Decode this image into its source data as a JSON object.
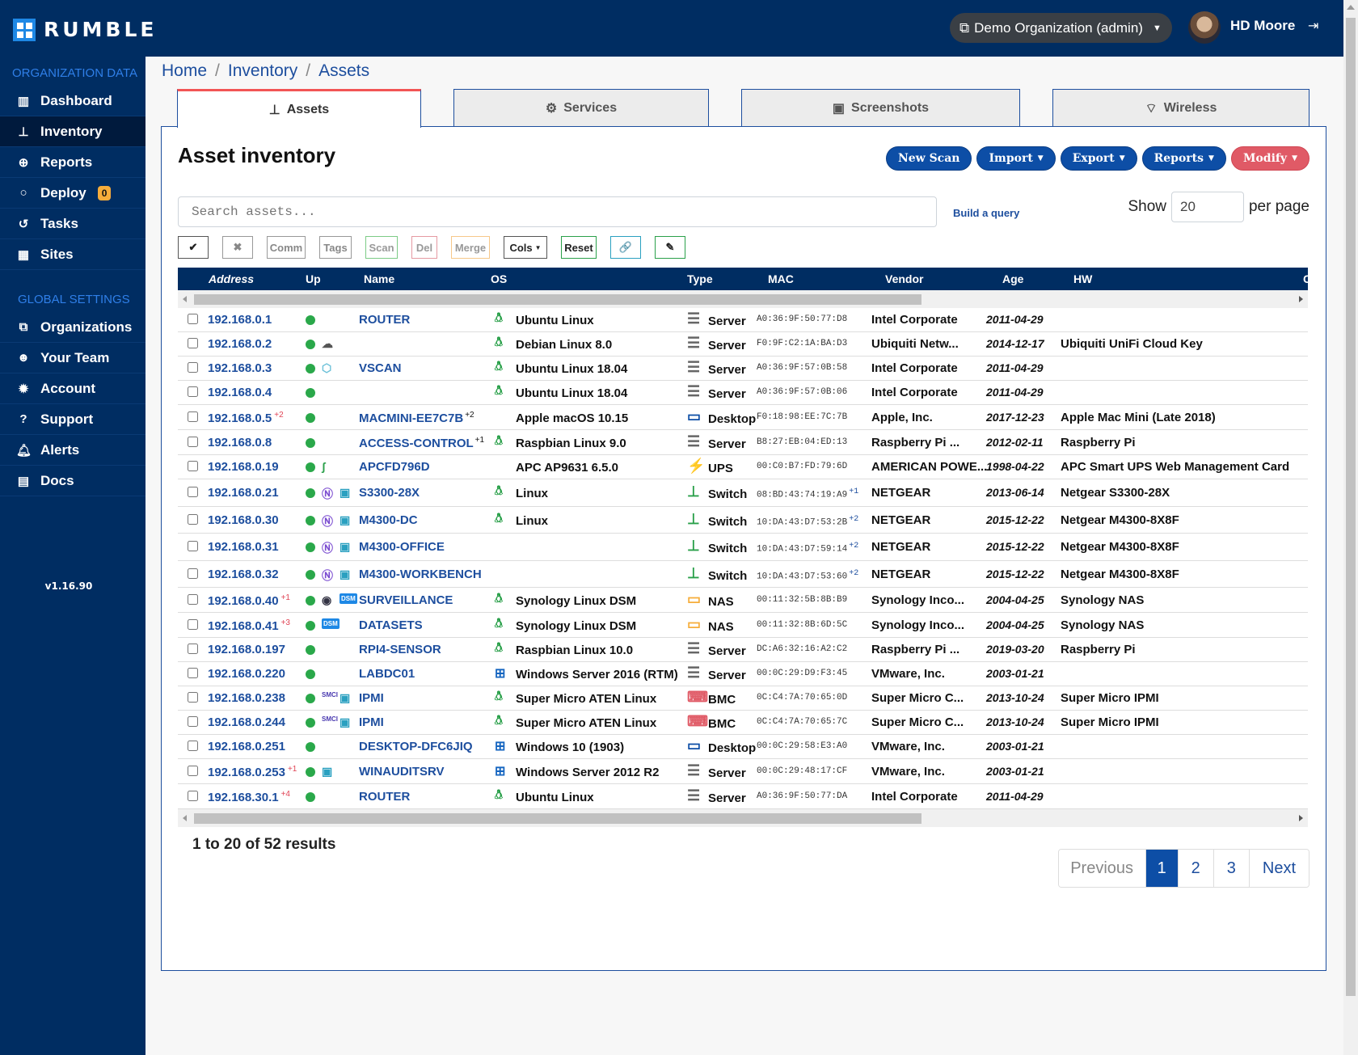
{
  "app": {
    "logo_text": "RUMBLE",
    "version": "v1.16.90"
  },
  "header": {
    "org_selector": "Demo Organization (admin)",
    "user_name": "HD Moore"
  },
  "sidebar": {
    "org_section": "ORGANIZATION DATA",
    "org_items": [
      {
        "label": "Dashboard",
        "icon": "bar-chart-icon"
      },
      {
        "label": "Inventory",
        "icon": "sitemap-icon",
        "active": true
      },
      {
        "label": "Reports",
        "icon": "search-plus-icon"
      },
      {
        "label": "Deploy",
        "icon": "circle-icon",
        "badge": "0"
      },
      {
        "label": "Tasks",
        "icon": "history-icon"
      },
      {
        "label": "Sites",
        "icon": "building-icon"
      }
    ],
    "global_section": "GLOBAL SETTINGS",
    "global_items": [
      {
        "label": "Organizations",
        "icon": "object-group-icon"
      },
      {
        "label": "Your Team",
        "icon": "users-icon"
      },
      {
        "label": "Account",
        "icon": "certificate-icon"
      },
      {
        "label": "Support",
        "icon": "question-circle-icon"
      },
      {
        "label": "Alerts",
        "icon": "bell-icon"
      },
      {
        "label": "Docs",
        "icon": "book-icon"
      }
    ]
  },
  "breadcrumb": [
    "Home",
    "Inventory",
    "Assets"
  ],
  "tabs": [
    {
      "label": "Assets",
      "active": true
    },
    {
      "label": "Services"
    },
    {
      "label": "Screenshots"
    },
    {
      "label": "Wireless"
    }
  ],
  "page": {
    "title": "Asset inventory",
    "actions": {
      "new_scan": "New Scan",
      "import": "Import",
      "export": "Export",
      "reports": "Reports",
      "modify": "Modify"
    },
    "search_placeholder": "Search assets...",
    "build_query": "Build a query",
    "show_label": "Show",
    "per_page_value": "20",
    "per_page_label": "per page",
    "toolbar": {
      "check": "✔",
      "clear": "✖",
      "comm": "Comm",
      "tags": "Tags",
      "scan": "Scan",
      "del": "Del",
      "merge": "Merge",
      "cols": "Cols",
      "reset": "Reset",
      "link": "🔗",
      "edit": "✎"
    }
  },
  "table": {
    "columns": {
      "address": "Address",
      "up": "Up",
      "name": "Name",
      "os": "OS",
      "type": "Type",
      "mac": "MAC",
      "vendor": "Vendor",
      "age": "Age",
      "hw": "HW",
      "more": "C"
    },
    "rows": [
      {
        "address": "192.168.0.1",
        "addr_extra": "",
        "icons": [],
        "name": "ROUTER",
        "name_extra": "",
        "os_icon": "linux",
        "os": "Ubuntu Linux",
        "type_icon": "server",
        "type": "Server",
        "mac": "A0:36:9F:50:77:D8",
        "mac_extra": "",
        "vendor": "Intel Corporate",
        "age": "2011-04-29",
        "hw": ""
      },
      {
        "address": "192.168.0.2",
        "addr_extra": "",
        "icons": [
          "cloud"
        ],
        "name": "",
        "name_extra": "",
        "os_icon": "linux",
        "os": "Debian Linux 8.0",
        "type_icon": "server",
        "type": "Server",
        "mac": "F0:9F:C2:1A:BA:D3",
        "mac_extra": "",
        "vendor": "Ubiquiti Netw...",
        "age": "2014-12-17",
        "hw": "Ubiquiti UniFi Cloud Key"
      },
      {
        "address": "192.168.0.3",
        "addr_extra": "",
        "icons": [
          "hexagon"
        ],
        "name": "VSCAN",
        "name_extra": "",
        "os_icon": "linux",
        "os": "Ubuntu Linux 18.04",
        "type_icon": "server",
        "type": "Server",
        "mac": "A0:36:9F:57:0B:58",
        "mac_extra": "",
        "vendor": "Intel Corporate",
        "age": "2011-04-29",
        "hw": ""
      },
      {
        "address": "192.168.0.4",
        "addr_extra": "",
        "icons": [],
        "name": "",
        "name_extra": "",
        "os_icon": "linux",
        "os": "Ubuntu Linux 18.04",
        "type_icon": "server",
        "type": "Server",
        "mac": "A0:36:9F:57:0B:06",
        "mac_extra": "",
        "vendor": "Intel Corporate",
        "age": "2011-04-29",
        "hw": ""
      },
      {
        "address": "192.168.0.5",
        "addr_extra": "+2",
        "icons": [],
        "name": "MACMINI-EE7C7B",
        "name_extra": "+2",
        "os_icon": "apple",
        "os": "Apple macOS 10.15",
        "type_icon": "desktop",
        "type": "Desktop",
        "mac": "F0:18:98:EE:7C:7B",
        "mac_extra": "",
        "vendor": "Apple, Inc.",
        "age": "2017-12-23",
        "hw": "Apple Mac Mini (Late 2018)"
      },
      {
        "address": "192.168.0.8",
        "addr_extra": "",
        "icons": [],
        "name": "ACCESS-CONTROL",
        "name_extra": "+1",
        "os_icon": "linux",
        "os": "Raspbian Linux 9.0",
        "type_icon": "server",
        "type": "Server",
        "mac": "B8:27:EB:04:ED:13",
        "mac_extra": "",
        "vendor": "Raspberry Pi ...",
        "age": "2012-02-11",
        "hw": "Raspberry Pi"
      },
      {
        "address": "192.168.0.19",
        "addr_extra": "",
        "icons": [
          "schneider"
        ],
        "name": "APCFD796D",
        "name_extra": "",
        "os_icon": "",
        "os": "APC AP9631 6.5.0",
        "type_icon": "ups",
        "type": "UPS",
        "mac": "00:C0:B7:FD:79:6D",
        "mac_extra": "",
        "vendor": "AMERICAN POWE...",
        "age": "1998-04-22",
        "hw": "APC Smart UPS Web Management Card"
      },
      {
        "address": "192.168.0.21",
        "addr_extra": "",
        "icons": [
          "netgear",
          "image"
        ],
        "name": "S3300-28X",
        "name_extra": "",
        "os_icon": "linux",
        "os": "Linux",
        "type_icon": "switch",
        "type": "Switch",
        "mac": "08:BD:43:74:19:A9",
        "mac_extra": "+1",
        "vendor": "NETGEAR",
        "age": "2013-06-14",
        "hw": "Netgear S3300-28X"
      },
      {
        "address": "192.168.0.30",
        "addr_extra": "",
        "icons": [
          "netgear",
          "image"
        ],
        "name": "M4300-DC",
        "name_extra": "",
        "os_icon": "linux",
        "os": "Linux",
        "type_icon": "switch",
        "type": "Switch",
        "mac": "10:DA:43:D7:53:2B",
        "mac_extra": "+2",
        "vendor": "NETGEAR",
        "age": "2015-12-22",
        "hw": "Netgear M4300-8X8F"
      },
      {
        "address": "192.168.0.31",
        "addr_extra": "",
        "icons": [
          "netgear",
          "image"
        ],
        "name": "M4300-OFFICE",
        "name_extra": "",
        "os_icon": "",
        "os": "",
        "type_icon": "switch",
        "type": "Switch",
        "mac": "10:DA:43:D7:59:14",
        "mac_extra": "+2",
        "vendor": "NETGEAR",
        "age": "2015-12-22",
        "hw": "Netgear M4300-8X8F"
      },
      {
        "address": "192.168.0.32",
        "addr_extra": "",
        "icons": [
          "netgear",
          "image"
        ],
        "name": "M4300-WORKBENCH",
        "name_extra": "",
        "os_icon": "",
        "os": "",
        "type_icon": "switch",
        "type": "Switch",
        "mac": "10:DA:43:D7:53:60",
        "mac_extra": "+2",
        "vendor": "NETGEAR",
        "age": "2015-12-22",
        "hw": "Netgear M4300-8X8F"
      },
      {
        "address": "192.168.0.40",
        "addr_extra": "+1",
        "icons": [
          "camera",
          "dsm"
        ],
        "name": "SURVEILLANCE",
        "name_extra": "",
        "os_icon": "linux",
        "os": "Synology Linux DSM",
        "type_icon": "nas",
        "type": "NAS",
        "mac": "00:11:32:5B:8B:B9",
        "mac_extra": "",
        "vendor": "Synology Inco...",
        "age": "2004-04-25",
        "hw": "Synology NAS"
      },
      {
        "address": "192.168.0.41",
        "addr_extra": "+3",
        "icons": [
          "dsm"
        ],
        "name": "DATASETS",
        "name_extra": "",
        "os_icon": "linux",
        "os": "Synology Linux DSM",
        "type_icon": "nas",
        "type": "NAS",
        "mac": "00:11:32:8B:6D:5C",
        "mac_extra": "",
        "vendor": "Synology Inco...",
        "age": "2004-04-25",
        "hw": "Synology NAS"
      },
      {
        "address": "192.168.0.197",
        "addr_extra": "",
        "icons": [],
        "name": "RPI4-SENSOR",
        "name_extra": "",
        "os_icon": "linux",
        "os": "Raspbian Linux 10.0",
        "type_icon": "server",
        "type": "Server",
        "mac": "DC:A6:32:16:A2:C2",
        "mac_extra": "",
        "vendor": "Raspberry Pi ...",
        "age": "2019-03-20",
        "hw": "Raspberry Pi"
      },
      {
        "address": "192.168.0.220",
        "addr_extra": "",
        "icons": [],
        "name": "LABDC01",
        "name_extra": "",
        "os_icon": "windows",
        "os": "Windows Server 2016 (RTM)",
        "type_icon": "server",
        "type": "Server",
        "mac": "00:0C:29:D9:F3:45",
        "mac_extra": "",
        "vendor": "VMware, Inc.",
        "age": "2003-01-21",
        "hw": ""
      },
      {
        "address": "192.168.0.238",
        "addr_extra": "",
        "icons": [
          "smci",
          "image"
        ],
        "name": "IPMI",
        "name_extra": "",
        "os_icon": "linux",
        "os": "Super Micro ATEN Linux",
        "type_icon": "bmc",
        "type": "BMC",
        "mac": "0C:C4:7A:70:65:0D",
        "mac_extra": "",
        "vendor": "Super Micro C...",
        "age": "2013-10-24",
        "hw": "Super Micro IPMI"
      },
      {
        "address": "192.168.0.244",
        "addr_extra": "",
        "icons": [
          "smci",
          "image"
        ],
        "name": "IPMI",
        "name_extra": "",
        "os_icon": "linux",
        "os": "Super Micro ATEN Linux",
        "type_icon": "bmc",
        "type": "BMC",
        "mac": "0C:C4:7A:70:65:7C",
        "mac_extra": "",
        "vendor": "Super Micro C...",
        "age": "2013-10-24",
        "hw": "Super Micro IPMI"
      },
      {
        "address": "192.168.0.251",
        "addr_extra": "",
        "icons": [],
        "name": "DESKTOP-DFC6JIQ",
        "name_extra": "",
        "os_icon": "windows",
        "os": "Windows 10 (1903)",
        "type_icon": "desktop",
        "type": "Desktop",
        "mac": "00:0C:29:58:E3:A0",
        "mac_extra": "",
        "vendor": "VMware, Inc.",
        "age": "2003-01-21",
        "hw": ""
      },
      {
        "address": "192.168.0.253",
        "addr_extra": "+1",
        "icons": [
          "image"
        ],
        "name": "WINAUDITSRV",
        "name_extra": "",
        "os_icon": "windows",
        "os": "Windows Server 2012 R2",
        "type_icon": "server",
        "type": "Server",
        "mac": "00:0C:29:48:17:CF",
        "mac_extra": "",
        "vendor": "VMware, Inc.",
        "age": "2003-01-21",
        "hw": ""
      },
      {
        "address": "192.168.30.1",
        "addr_extra": "+4",
        "icons": [],
        "name": "ROUTER",
        "name_extra": "",
        "os_icon": "linux",
        "os": "Ubuntu Linux",
        "type_icon": "server",
        "type": "Server",
        "mac": "A0:36:9F:50:77:DA",
        "mac_extra": "",
        "vendor": "Intel Corporate",
        "age": "2011-04-29",
        "hw": ""
      }
    ]
  },
  "footer": {
    "results": "1 to 20 of 52 results",
    "pagination": {
      "previous": "Previous",
      "pages": [
        "1",
        "2",
        "3"
      ],
      "current": "1",
      "next": "Next"
    }
  },
  "colors": {
    "navy": "#002d62",
    "link": "#1d4e9e",
    "primary": "#0d4ea6",
    "danger": "#e05a66",
    "up_green": "#2aa84a",
    "active_tab": "#f25555"
  }
}
